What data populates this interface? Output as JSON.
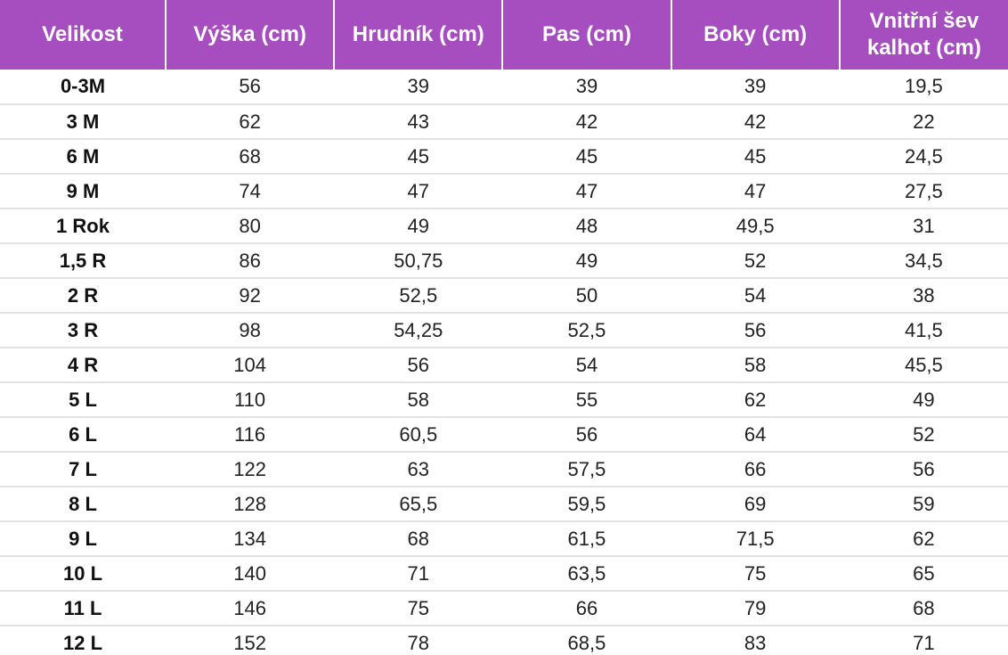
{
  "table": {
    "header": [
      "Velikost",
      "Výška (cm)",
      "Hrudník (cm)",
      "Pas (cm)",
      "Boky (cm)",
      "Vnitřní šev kalhot (cm)"
    ],
    "rows": [
      [
        "0-3M",
        "56",
        "39",
        "39",
        "39",
        "19,5"
      ],
      [
        "3 M",
        "62",
        "43",
        "42",
        "42",
        "22"
      ],
      [
        "6 M",
        "68",
        "45",
        "45",
        "45",
        "24,5"
      ],
      [
        "9 M",
        "74",
        "47",
        "47",
        "47",
        "27,5"
      ],
      [
        "1 Rok",
        "80",
        "49",
        "48",
        "49,5",
        "31"
      ],
      [
        "1,5 R",
        "86",
        "50,75",
        "49",
        "52",
        "34,5"
      ],
      [
        "2 R",
        "92",
        "52,5",
        "50",
        "54",
        "38"
      ],
      [
        "3 R",
        "98",
        "54,25",
        "52,5",
        "56",
        "41,5"
      ],
      [
        "4 R",
        "104",
        "56",
        "54",
        "58",
        "45,5"
      ],
      [
        "5 L",
        "110",
        "58",
        "55",
        "62",
        "49"
      ],
      [
        "6 L",
        "116",
        "60,5",
        "56",
        "64",
        "52"
      ],
      [
        "7 L",
        "122",
        "63",
        "57,5",
        "66",
        "56"
      ],
      [
        "8 L",
        "128",
        "65,5",
        "59,5",
        "69",
        "59"
      ],
      [
        "9 L",
        "134",
        "68",
        "61,5",
        "71,5",
        "62"
      ],
      [
        "10 L",
        "140",
        "71",
        "63,5",
        "75",
        "65"
      ],
      [
        "11 L",
        "146",
        "75",
        "66",
        "79",
        "68"
      ],
      [
        "12 L",
        "152",
        "78",
        "68,5",
        "83",
        "71"
      ]
    ]
  }
}
